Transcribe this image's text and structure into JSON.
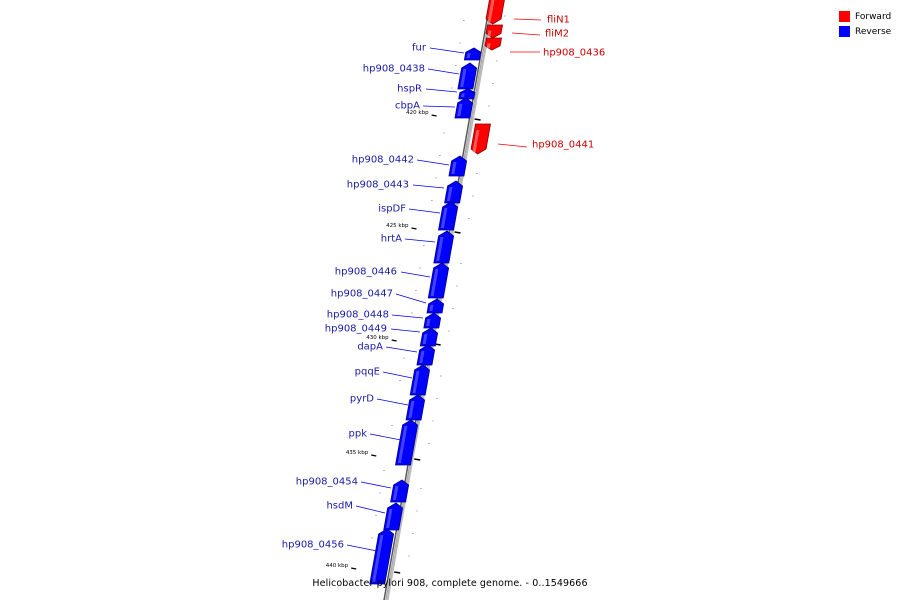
{
  "legend": {
    "forward": {
      "label": "Forward",
      "color": "#ff0000"
    },
    "reverse": {
      "label": "Reverse",
      "color": "#0000ff"
    }
  },
  "genome_title": "Helicobacter pylori 908, complete genome. - 0..1549666",
  "ticks": [
    "420 kbp",
    "425 kbp",
    "430 kbp",
    "435 kbp",
    "440 kbp"
  ],
  "genes": [
    {
      "name": "fliN1",
      "strand": "forward"
    },
    {
      "name": "fliM2",
      "strand": "forward"
    },
    {
      "name": "hp908_0436",
      "strand": "forward"
    },
    {
      "name": "fur",
      "strand": "reverse"
    },
    {
      "name": "hp908_0438",
      "strand": "reverse"
    },
    {
      "name": "hspR",
      "strand": "reverse"
    },
    {
      "name": "cbpA",
      "strand": "reverse"
    },
    {
      "name": "hp908_0441",
      "strand": "forward"
    },
    {
      "name": "hp908_0442",
      "strand": "reverse"
    },
    {
      "name": "hp908_0443",
      "strand": "reverse"
    },
    {
      "name": "ispDF",
      "strand": "reverse"
    },
    {
      "name": "hrtA",
      "strand": "reverse"
    },
    {
      "name": "hp908_0446",
      "strand": "reverse"
    },
    {
      "name": "hp908_0447",
      "strand": "reverse"
    },
    {
      "name": "hp908_0448",
      "strand": "reverse"
    },
    {
      "name": "hp908_0449",
      "strand": "reverse"
    },
    {
      "name": "dapA",
      "strand": "reverse"
    },
    {
      "name": "pqqE",
      "strand": "reverse"
    },
    {
      "name": "pyrD",
      "strand": "reverse"
    },
    {
      "name": "ppk",
      "strand": "reverse"
    },
    {
      "name": "hp908_0454",
      "strand": "reverse"
    },
    {
      "name": "hsdM",
      "strand": "reverse"
    },
    {
      "name": "hp908_0456",
      "strand": "reverse"
    }
  ]
}
